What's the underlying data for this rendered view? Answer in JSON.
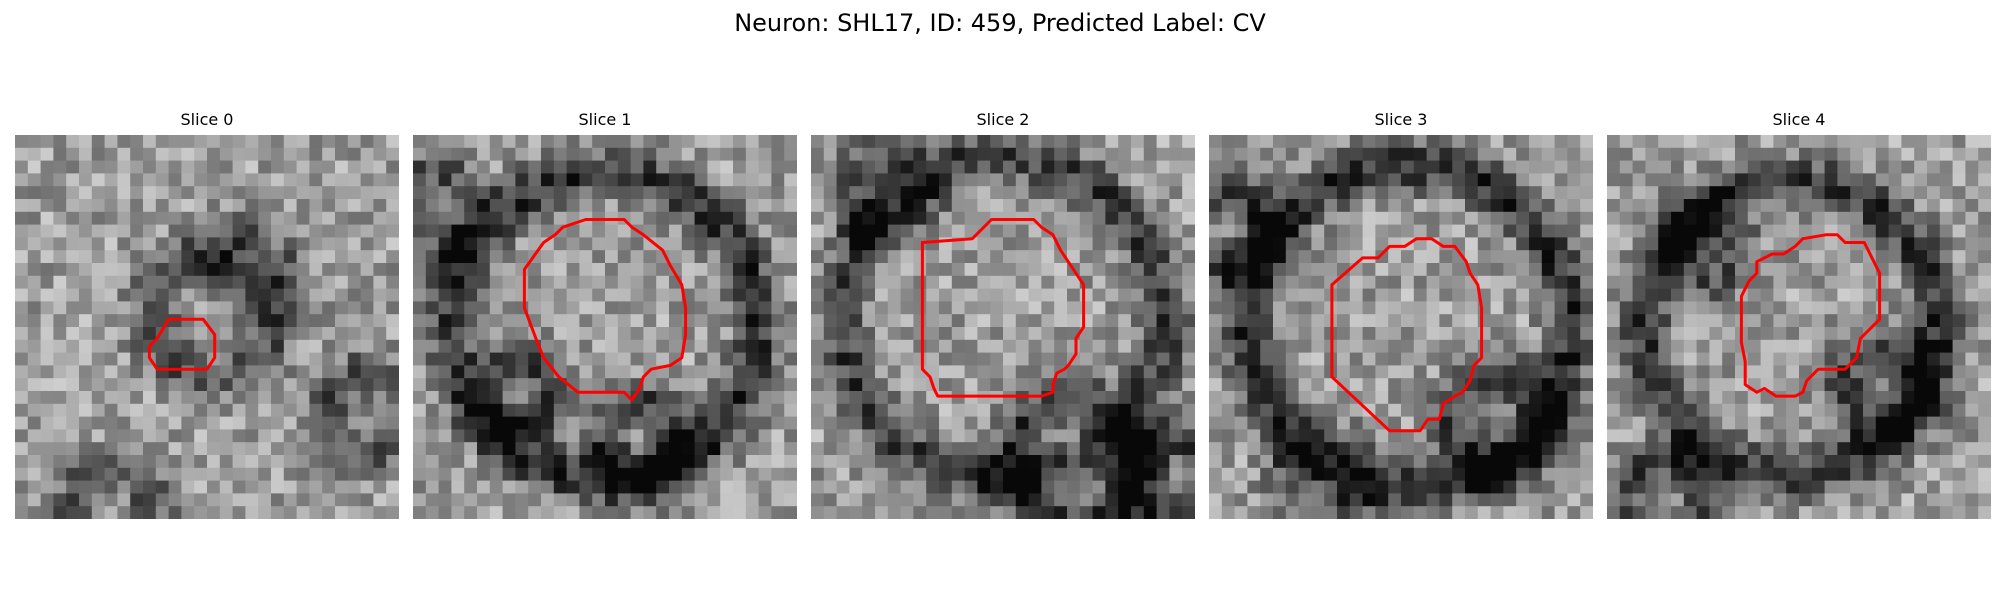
{
  "figure": {
    "title": "Neuron: SHL17, ID: 459, Predicted Label: CV"
  },
  "contour_color": "#ff0000",
  "panels": [
    {
      "title": "Slice 0",
      "seed": 11,
      "darkspots": [
        [
          0.52,
          0.47,
          0.16,
          0.32
        ],
        [
          0.92,
          0.72,
          0.1,
          0.3
        ],
        [
          0.25,
          0.97,
          0.1,
          0.3
        ],
        [
          0.62,
          0.33,
          0.1,
          0.18
        ]
      ],
      "contour": [
        [
          0.37,
          0.53
        ],
        [
          0.4,
          0.48
        ],
        [
          0.49,
          0.48
        ],
        [
          0.52,
          0.52
        ],
        [
          0.52,
          0.58
        ],
        [
          0.5,
          0.61
        ],
        [
          0.37,
          0.61
        ],
        [
          0.35,
          0.58
        ],
        [
          0.35,
          0.55
        ]
      ]
    },
    {
      "title": "Slice 1",
      "seed": 23,
      "darkspots": [
        [
          0.5,
          0.5,
          0.4,
          0.42
        ],
        [
          0.28,
          0.68,
          0.08,
          0.35
        ],
        [
          0.6,
          0.8,
          0.1,
          0.35
        ],
        [
          0.05,
          0.2,
          0.1,
          0.3
        ]
      ],
      "contour": [
        [
          0.34,
          0.28
        ],
        [
          0.37,
          0.26
        ],
        [
          0.39,
          0.24
        ],
        [
          0.45,
          0.22
        ],
        [
          0.55,
          0.22
        ],
        [
          0.57,
          0.24
        ],
        [
          0.6,
          0.26
        ],
        [
          0.65,
          0.3
        ],
        [
          0.67,
          0.34
        ],
        [
          0.7,
          0.39
        ],
        [
          0.71,
          0.45
        ],
        [
          0.71,
          0.52
        ],
        [
          0.7,
          0.58
        ],
        [
          0.67,
          0.6
        ],
        [
          0.62,
          0.61
        ],
        [
          0.6,
          0.63
        ],
        [
          0.59,
          0.66
        ],
        [
          0.57,
          0.69
        ],
        [
          0.55,
          0.67
        ],
        [
          0.5,
          0.67
        ],
        [
          0.43,
          0.67
        ],
        [
          0.38,
          0.63
        ],
        [
          0.34,
          0.58
        ],
        [
          0.32,
          0.53
        ],
        [
          0.29,
          0.45
        ],
        [
          0.29,
          0.35
        ]
      ]
    },
    {
      "title": "Slice 2",
      "seed": 37,
      "darkspots": [
        [
          0.5,
          0.48,
          0.42,
          0.38
        ],
        [
          0.68,
          0.85,
          0.16,
          0.4
        ],
        [
          0.95,
          0.9,
          0.1,
          0.4
        ],
        [
          0.2,
          0.15,
          0.1,
          0.25
        ]
      ],
      "contour": [
        [
          0.29,
          0.28
        ],
        [
          0.42,
          0.27
        ],
        [
          0.45,
          0.24
        ],
        [
          0.47,
          0.22
        ],
        [
          0.58,
          0.22
        ],
        [
          0.6,
          0.24
        ],
        [
          0.63,
          0.26
        ],
        [
          0.65,
          0.3
        ],
        [
          0.71,
          0.39
        ],
        [
          0.71,
          0.5
        ],
        [
          0.69,
          0.53
        ],
        [
          0.69,
          0.57
        ],
        [
          0.67,
          0.6
        ],
        [
          0.66,
          0.61
        ],
        [
          0.64,
          0.62
        ],
        [
          0.63,
          0.65
        ],
        [
          0.63,
          0.67
        ],
        [
          0.6,
          0.68
        ],
        [
          0.33,
          0.68
        ],
        [
          0.32,
          0.66
        ],
        [
          0.31,
          0.63
        ],
        [
          0.29,
          0.61
        ]
      ]
    },
    {
      "title": "Slice 3",
      "seed": 53,
      "darkspots": [
        [
          0.52,
          0.5,
          0.42,
          0.45
        ],
        [
          0.05,
          0.25,
          0.1,
          0.35
        ],
        [
          0.75,
          0.75,
          0.12,
          0.35
        ],
        [
          0.3,
          0.9,
          0.1,
          0.25
        ]
      ],
      "contour": [
        [
          0.32,
          0.39
        ],
        [
          0.4,
          0.32
        ],
        [
          0.44,
          0.32
        ],
        [
          0.47,
          0.29
        ],
        [
          0.51,
          0.29
        ],
        [
          0.54,
          0.27
        ],
        [
          0.58,
          0.27
        ],
        [
          0.61,
          0.29
        ],
        [
          0.64,
          0.29
        ],
        [
          0.67,
          0.33
        ],
        [
          0.68,
          0.36
        ],
        [
          0.7,
          0.39
        ],
        [
          0.71,
          0.45
        ],
        [
          0.71,
          0.58
        ],
        [
          0.69,
          0.6
        ],
        [
          0.68,
          0.64
        ],
        [
          0.66,
          0.67
        ],
        [
          0.64,
          0.68
        ],
        [
          0.61,
          0.7
        ],
        [
          0.6,
          0.74
        ],
        [
          0.57,
          0.74
        ],
        [
          0.55,
          0.77
        ],
        [
          0.47,
          0.77
        ],
        [
          0.32,
          0.63
        ]
      ]
    },
    {
      "title": "Slice 4",
      "seed": 71,
      "darkspots": [
        [
          0.48,
          0.5,
          0.38,
          0.42
        ],
        [
          0.72,
          0.65,
          0.1,
          0.35
        ],
        [
          0.25,
          0.3,
          0.08,
          0.3
        ],
        [
          0.15,
          0.95,
          0.1,
          0.35
        ]
      ],
      "contour": [
        [
          0.37,
          0.38
        ],
        [
          0.39,
          0.36
        ],
        [
          0.39,
          0.33
        ],
        [
          0.43,
          0.31
        ],
        [
          0.46,
          0.31
        ],
        [
          0.49,
          0.29
        ],
        [
          0.51,
          0.27
        ],
        [
          0.57,
          0.26
        ],
        [
          0.6,
          0.26
        ],
        [
          0.62,
          0.28
        ],
        [
          0.67,
          0.28
        ],
        [
          0.69,
          0.32
        ],
        [
          0.71,
          0.36
        ],
        [
          0.71,
          0.48
        ],
        [
          0.68,
          0.51
        ],
        [
          0.66,
          0.53
        ],
        [
          0.65,
          0.58
        ],
        [
          0.62,
          0.61
        ],
        [
          0.55,
          0.61
        ],
        [
          0.52,
          0.64
        ],
        [
          0.51,
          0.67
        ],
        [
          0.49,
          0.68
        ],
        [
          0.44,
          0.68
        ],
        [
          0.41,
          0.66
        ],
        [
          0.39,
          0.67
        ],
        [
          0.36,
          0.65
        ],
        [
          0.36,
          0.59
        ],
        [
          0.35,
          0.54
        ],
        [
          0.35,
          0.5
        ],
        [
          0.35,
          0.42
        ]
      ]
    }
  ]
}
